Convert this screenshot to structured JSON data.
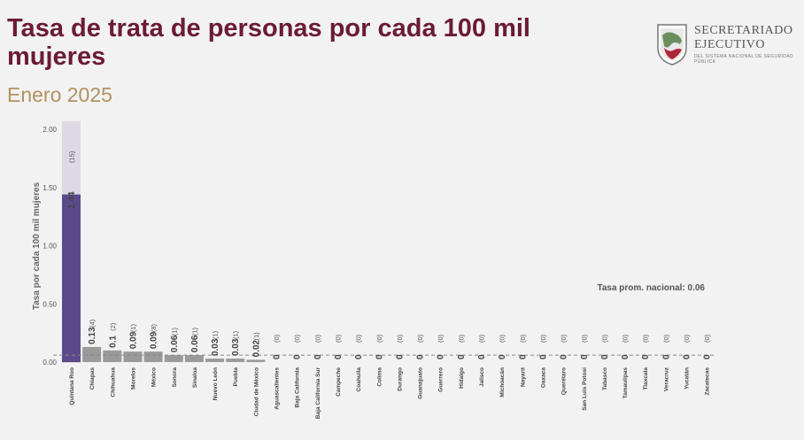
{
  "header": {
    "title": "Tasa de trata de personas por cada 100 mil mujeres",
    "subtitle": "Enero 2025"
  },
  "logo": {
    "line1": "SECRETARIADO",
    "line2": "EJECUTIVO",
    "line3": "DEL SISTEMA NACIONAL DE SEGURIDAD PÚBLICA"
  },
  "colors": {
    "title": "#6b1b35",
    "subtitle": "#b3915f",
    "highlight_bar": "#5b4a8b",
    "highlight_shadow": "#dcd9e4",
    "bar": "#9a9a9a"
  },
  "chart_data": {
    "type": "bar",
    "ylabel": "Tasa por cada 100 mil mujeres",
    "ylim": [
      0,
      2.0
    ],
    "yticks": [
      "0.00",
      "0.50",
      "1.00",
      "1.50",
      "2.00"
    ],
    "ytick_values": [
      0,
      0.5,
      1.0,
      1.5,
      2.0
    ],
    "categories": [
      "Quintana Roo",
      "Chiapas",
      "Chihuahua",
      "Morelos",
      "México",
      "Sonora",
      "Sinaloa",
      "Nuevo León",
      "Puebla",
      "Ciudad de México",
      "Aguascalientes",
      "Baja California",
      "Baja California Sur",
      "Campeche",
      "Coahuila",
      "Colima",
      "Durango",
      "Guanajuato",
      "Guerrero",
      "Hidalgo",
      "Jalisco",
      "Michoacán",
      "Nayarit",
      "Oaxaca",
      "Querétaro",
      "San Luis Potosí",
      "Tabasco",
      "Tamaulipas",
      "Tlaxcala",
      "Veracruz",
      "Yucatán",
      "Zacatecas"
    ],
    "values": [
      1.44,
      0.13,
      0.1,
      0.09,
      0.09,
      0.06,
      0.06,
      0.03,
      0.03,
      0.02,
      0,
      0,
      0,
      0,
      0,
      0,
      0,
      0,
      0,
      0,
      0,
      0,
      0,
      0,
      0,
      0,
      0,
      0,
      0,
      0,
      0,
      0
    ],
    "value_labels": [
      "1.44",
      "0.13",
      "0.1",
      "0.09",
      "0.09",
      "0.06",
      "0.06",
      "0.03",
      "0.03",
      "0.02",
      "0",
      "0",
      "0",
      "0",
      "0",
      "0",
      "0",
      "0",
      "0",
      "0",
      "0",
      "0",
      "0",
      "0",
      "0",
      "0",
      "0",
      "0",
      "0",
      "0",
      "0",
      "0"
    ],
    "counts": [
      "(15)",
      "(4)",
      "(2)",
      "(1)",
      "(8)",
      "(1)",
      "(1)",
      "(1)",
      "(1)",
      "(1)",
      "(0)",
      "(0)",
      "(0)",
      "(0)",
      "(0)",
      "(0)",
      "(0)",
      "(0)",
      "(0)",
      "(0)",
      "(0)",
      "(0)",
      "(0)",
      "(0)",
      "(0)",
      "(0)",
      "(0)",
      "(0)",
      "(0)",
      "(0)",
      "(0)",
      "(0)"
    ],
    "highlight_index": 0,
    "reference_line": {
      "value": 0.06,
      "label": "Tasa prom. nacional: 0.06"
    }
  }
}
